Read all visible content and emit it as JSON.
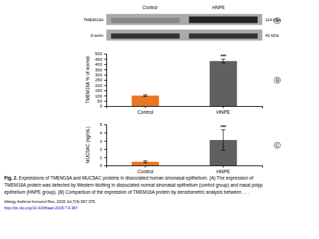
{
  "chart_data": [
    {
      "type": "blot",
      "title": "Ⓐ",
      "categories": [
        "Control",
        "HNPE"
      ],
      "annotations": [
        "TMEM16A",
        "114 kDa",
        "β-actin",
        "42 kDa"
      ]
    },
    {
      "type": "bar",
      "title": "Ⓑ",
      "categories": [
        "Control",
        "HNPE"
      ],
      "values": [
        100,
        430
      ],
      "errors": [
        8,
        18
      ],
      "colors": [
        "#E87722",
        "#606060"
      ],
      "ylabel": "TMEM16A % of normal",
      "ylim": [
        0,
        500
      ],
      "yticks": [
        0,
        50,
        100,
        150,
        200,
        250,
        300,
        350,
        400,
        450,
        500
      ],
      "annotations": [
        {
          "text": "***",
          "category": "HNPE"
        }
      ]
    },
    {
      "type": "bar",
      "title": "Ⓒ",
      "categories": [
        "Control",
        "HNPE"
      ],
      "values": [
        0.45,
        3.1
      ],
      "errors": [
        0.12,
        1.25
      ],
      "colors": [
        "#E87722",
        "#606060"
      ],
      "ylabel": "MUC5AC (ng/mL)",
      "ylim": [
        0,
        5
      ],
      "yticks": [
        0,
        1,
        2,
        3,
        4,
        5
      ],
      "annotations": [
        {
          "text": "***",
          "category": "HNPE"
        }
      ]
    }
  ],
  "caption_title": "Fig. 2.",
  "caption": [
    " Expressions of TMEM16A and MUC5AC proteins in dissociated human sinonasal epithelium. (A) The expression of",
    "TMEM16A protein was detected by Western blotting in dissociated normal sinonasal epithelium (control group) and nasal polyp",
    "epithelium (HNPE group). (B) Comparison of the expression of TMEM16A protein by densitometric analysis between . . ."
  ],
  "source": "Allergy Asthma Immunol Res. 2015 Jul;7(4):367-375.",
  "link": {
    "text": "http://dx.doi.org/10.4168/aair.2015.7.4.367",
    "color": "#0000CC"
  }
}
